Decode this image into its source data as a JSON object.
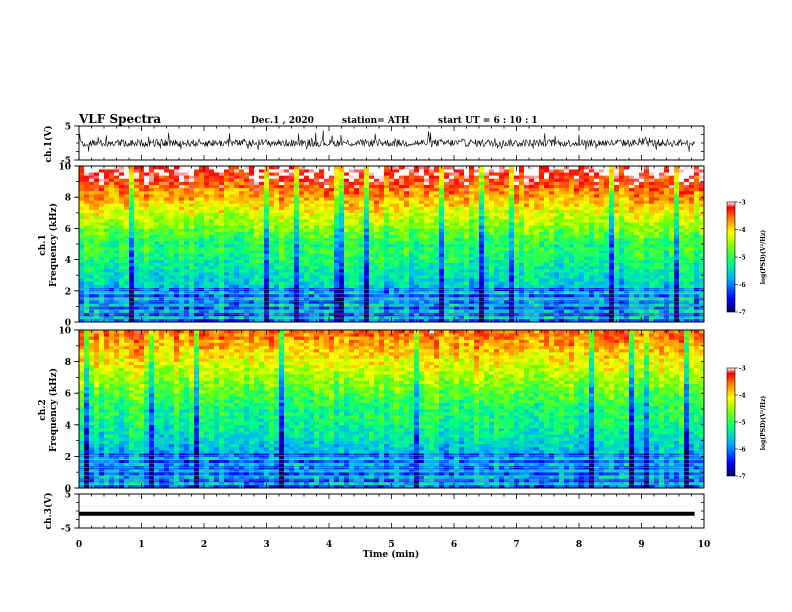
{
  "header": {
    "title": "VLF Spectra",
    "date": "Dec.1 , 2020",
    "station": "station= ATH",
    "start": "start UT =   6 : 10 : 1"
  },
  "chart_data": [
    {
      "type": "line",
      "id": "ch1-waveform",
      "ylabel": "ch.1(V)",
      "ylim": [
        -5,
        5
      ],
      "yticks": [
        5,
        -5
      ],
      "xlim": [
        0,
        10
      ],
      "description_values": "noisy waveform around 0 V with excursions between about -3 and 3 V",
      "color": "#000000"
    },
    {
      "type": "heatmap",
      "id": "ch1-spectrogram",
      "ylabel": "ch.1\nFrequency (kHz)",
      "ylim": [
        0,
        10
      ],
      "yticks": [
        0,
        2,
        4,
        6,
        8,
        10
      ],
      "xlim": [
        0,
        10
      ],
      "colorbar": {
        "label": "log(PSD)(V²/Hz)",
        "range": [
          -7,
          -3
        ],
        "ticks": [
          -3,
          -4,
          -5,
          -6,
          -7
        ]
      }
    },
    {
      "type": "heatmap",
      "id": "ch2-spectrogram",
      "ylabel": "ch.2\nFrequency (kHz)",
      "ylim": [
        0,
        10
      ],
      "yticks": [
        0,
        2,
        4,
        6,
        8,
        10
      ],
      "xlim": [
        0,
        10
      ],
      "colorbar": {
        "label": "log(PSD)(V²/Hz)",
        "range": [
          -7,
          -3
        ],
        "ticks": [
          -3,
          -4,
          -5,
          -6,
          -7
        ]
      }
    },
    {
      "type": "line",
      "id": "ch3-waveform",
      "ylabel": "ch.3(V)",
      "ylim": [
        -5,
        5
      ],
      "yticks": [
        5,
        -5
      ],
      "xlim": [
        0,
        10
      ],
      "xlabel": "Time (min)",
      "xticks": [
        0,
        1,
        2,
        3,
        4,
        5,
        6,
        7,
        8,
        9,
        10
      ],
      "level": -0.8,
      "color": "#000000"
    }
  ],
  "labels": {
    "ch1_wave": "ch.1(V)",
    "ch1_spec_a": "ch.1",
    "ch1_spec_b": "Frequency (kHz)",
    "ch2_spec_a": "ch.2",
    "ch2_spec_b": "Frequency (kHz)",
    "ch3_wave": "ch.3(V)",
    "xlabel": "Time (min)",
    "cbar_label": "log(PSD)(V²/Hz)"
  }
}
